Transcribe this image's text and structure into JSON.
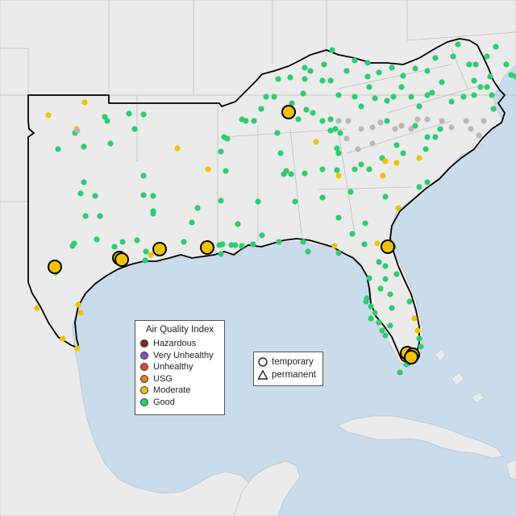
{
  "legend": {
    "title": "Air Quality Index",
    "categories": [
      {
        "label": "Hazardous",
        "color": "#7e2a2a"
      },
      {
        "label": "Very Unhealthy",
        "color": "#8f4fb0"
      },
      {
        "label": "Unhealthy",
        "color": "#e8453c"
      },
      {
        "label": "USG",
        "color": "#e67e22"
      },
      {
        "label": "Moderate",
        "color": "#f2c200"
      },
      {
        "label": "Good",
        "color": "#2ecc71"
      }
    ]
  },
  "site_types": {
    "temporary": "temporary",
    "permanent": "permanent"
  },
  "colors": {
    "water": "#c8dcec",
    "land": "#eceaea",
    "land_outside": "#f1efef",
    "state_line": "#bcbcbc",
    "region_outline": "#000000",
    "no_data": "#b8b8b8"
  }
}
